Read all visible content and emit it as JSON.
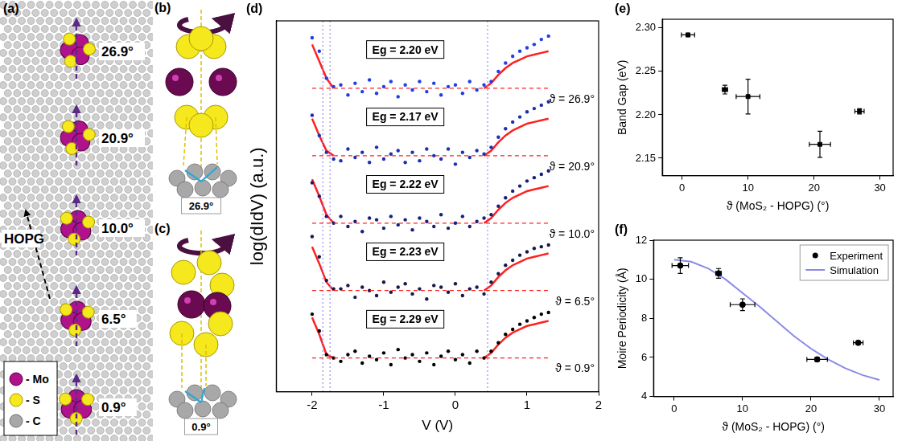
{
  "panel_a": {
    "label": "(a)",
    "substrate": "HOPG",
    "angles": [
      "26.9°",
      "20.9°",
      "10.0°",
      "6.5°",
      "0.9°"
    ],
    "key": [
      "- Mo",
      "- S",
      "- C"
    ]
  },
  "panel_b": {
    "label": "(b)",
    "angle": "26.9°"
  },
  "panel_c": {
    "label": "(c)",
    "angle": "0.9°"
  },
  "chart_data": [
    {
      "label": "(d)",
      "type": "scatter",
      "x_label": "V (V)",
      "y_label": "log(dIdV) (a.u.)",
      "xlim": [
        -2.5,
        2
      ],
      "xticks": [
        -2,
        -1,
        0,
        1,
        2
      ],
      "ylim": [
        0,
        11
      ],
      "tick_labels": "x",
      "grid": false,
      "gap_lines": [
        -1.85,
        -1.75,
        0.45
      ],
      "fit_color": "#ff2020",
      "x": [
        -2.0,
        -1.9,
        -1.8,
        -1.7,
        -1.6,
        -1.5,
        -1.4,
        -1.3,
        -1.2,
        -1.1,
        -1.0,
        -0.9,
        -0.8,
        -0.7,
        -0.6,
        -0.5,
        -0.4,
        -0.3,
        -0.2,
        -0.1,
        0.0,
        0.1,
        0.2,
        0.3,
        0.4,
        0.5,
        0.6,
        0.7,
        0.8,
        0.9,
        1.0,
        1.1,
        1.2,
        1.3
      ],
      "series": [
        {
          "name": "ϑ = 26.9°",
          "color": "#1f3ee6",
          "eg_label": "Eg = 2.20 eV",
          "baseline": 9,
          "values": [
            10.5,
            10.1,
            9.3,
            9.05,
            9.1,
            8.8,
            9.15,
            8.9,
            9.25,
            8.85,
            9.05,
            9.2,
            8.75,
            9.1,
            8.95,
            9.2,
            8.9,
            9.15,
            8.8,
            9.05,
            9.1,
            8.85,
            9.2,
            8.95,
            9.1,
            9.2,
            9.5,
            9.75,
            9.95,
            10.1,
            10.2,
            10.3,
            10.45,
            10.55
          ],
          "fit": [
            10.3,
            9.8,
            9.3,
            9.0,
            null,
            null,
            null,
            null,
            null,
            null,
            null,
            null,
            null,
            null,
            null,
            null,
            null,
            null,
            null,
            null,
            null,
            null,
            null,
            null,
            9.0,
            9.15,
            9.4,
            9.6,
            9.75,
            9.85,
            9.95,
            10.0,
            10.05,
            10.1
          ]
        },
        {
          "name": "ϑ = 20.9°",
          "color": "#1b2fb0",
          "eg_label": "Eg = 2.17 eV",
          "baseline": 7,
          "values": [
            8.2,
            7.6,
            7.1,
            6.9,
            6.85,
            7.2,
            6.95,
            7.1,
            6.8,
            7.25,
            6.9,
            7.05,
            7.15,
            6.8,
            7.1,
            6.85,
            7.2,
            7.0,
            6.9,
            7.2,
            6.75,
            7.1,
            6.95,
            7.15,
            7.05,
            7.25,
            7.55,
            7.8,
            8.0,
            8.15,
            8.3,
            8.4,
            8.5,
            8.6
          ],
          "fit": [
            8.1,
            7.6,
            7.15,
            7.0,
            null,
            null,
            null,
            null,
            null,
            null,
            null,
            null,
            null,
            null,
            null,
            null,
            null,
            null,
            null,
            null,
            null,
            null,
            null,
            null,
            7.0,
            7.15,
            7.4,
            7.6,
            7.75,
            7.85,
            7.95,
            8.0,
            8.05,
            8.1
          ]
        },
        {
          "name": "ϑ = 10.0°",
          "color": "#16207a",
          "eg_label": "Eg = 2.22 eV",
          "baseline": 5,
          "values": [
            6.2,
            5.8,
            5.2,
            5.0,
            5.2,
            4.9,
            5.05,
            4.75,
            5.15,
            5.1,
            4.85,
            5.2,
            4.95,
            5.1,
            4.8,
            5.15,
            5.05,
            4.9,
            5.25,
            4.85,
            5.0,
            5.2,
            4.9,
            5.05,
            5.15,
            5.25,
            5.5,
            5.75,
            5.95,
            6.1,
            6.25,
            6.35,
            6.45,
            6.55
          ],
          "fit": [
            6.3,
            5.8,
            5.25,
            5.0,
            null,
            null,
            null,
            null,
            null,
            null,
            null,
            null,
            null,
            null,
            null,
            null,
            null,
            null,
            null,
            null,
            null,
            null,
            null,
            null,
            5.0,
            5.15,
            5.4,
            5.6,
            5.75,
            5.85,
            5.95,
            6.0,
            6.05,
            6.1
          ]
        },
        {
          "name": "ϑ = 6.5°",
          "color": "#141a4a",
          "eg_label": "Eg = 2.23 eV",
          "baseline": 3,
          "values": [
            4.6,
            4.0,
            3.3,
            3.05,
            3.05,
            3.15,
            2.8,
            3.1,
            3.0,
            2.85,
            3.25,
            2.95,
            3.1,
            3.2,
            2.9,
            3.05,
            2.75,
            3.15,
            3.1,
            2.95,
            3.2,
            2.85,
            3.05,
            3.1,
            2.9,
            3.25,
            3.5,
            3.75,
            3.9,
            4.05,
            4.15,
            4.25,
            4.3,
            4.35
          ],
          "fit": [
            4.3,
            3.8,
            3.25,
            3.0,
            null,
            null,
            null,
            null,
            null,
            null,
            null,
            null,
            null,
            null,
            null,
            null,
            null,
            null,
            null,
            null,
            null,
            null,
            null,
            null,
            3.0,
            3.15,
            3.4,
            3.6,
            3.75,
            3.85,
            3.95,
            4.0,
            4.05,
            4.1
          ]
        },
        {
          "name": "ϑ = 0.9°",
          "color": "#000000",
          "eg_label": "Eg = 2.29 eV",
          "baseline": 1,
          "values": [
            2.3,
            1.8,
            1.1,
            1.0,
            0.9,
            1.1,
            1.2,
            0.85,
            1.05,
            0.95,
            1.15,
            0.8,
            1.25,
            1.0,
            1.1,
            0.9,
            1.15,
            0.8,
            1.05,
            1.2,
            0.95,
            1.1,
            0.85,
            1.2,
            1.0,
            1.2,
            1.45,
            1.7,
            1.85,
            2.0,
            2.1,
            2.2,
            2.3,
            2.35
          ],
          "fit": [
            2.2,
            1.7,
            1.1,
            1.0,
            null,
            null,
            null,
            null,
            null,
            null,
            null,
            null,
            null,
            null,
            null,
            null,
            null,
            null,
            null,
            null,
            null,
            null,
            null,
            null,
            1.0,
            1.15,
            1.4,
            1.6,
            1.75,
            1.85,
            1.95,
            2.0,
            2.05,
            2.1
          ]
        }
      ]
    },
    {
      "label": "(e)",
      "type": "scatter",
      "x_label": "ϑ (MoS₂ - HOPG) (°)",
      "y_label": "Band Gap (eV)",
      "xlim": [
        -3,
        32
      ],
      "xticks": [
        0,
        10,
        20,
        30
      ],
      "ylim": [
        2.13,
        2.31
      ],
      "yticks": [
        2.15,
        {
          "value": 2.2,
          "label": "2.20"
        },
        2.25,
        {
          "value": 2.3,
          "label": "2.30"
        }
      ],
      "grid": false,
      "color": "#000000",
      "marker": "square",
      "x": [
        0.9,
        6.5,
        10.0,
        20.9,
        26.9
      ],
      "values": [
        2.292,
        2.229,
        2.221,
        2.166,
        2.204
      ],
      "x_error": [
        1.0,
        0.4,
        1.8,
        1.6,
        0.7
      ],
      "y_error": [
        0.002,
        0.005,
        0.02,
        0.015,
        0.003
      ]
    },
    {
      "label": "(f)",
      "type": "scatter",
      "x_label": "ϑ (MoS₂ - HOPG) (°)",
      "y_label": "Moire Periodicity (Å)",
      "xlim": [
        -3,
        32
      ],
      "xticks": [
        0,
        10,
        20,
        30
      ],
      "ylim": [
        4,
        12
      ],
      "yticks": [
        4,
        6,
        8,
        10,
        12
      ],
      "grid": false,
      "legend": "upper right",
      "series": [
        {
          "name": "Experiment",
          "color": "#000000",
          "marker": "circle",
          "x": [
            0.9,
            6.5,
            10.0,
            20.9,
            26.9
          ],
          "values": [
            10.7,
            10.3,
            8.7,
            5.9,
            6.75
          ],
          "x_error": [
            1.2,
            0.4,
            1.8,
            1.5,
            0.7
          ],
          "y_error": [
            0.4,
            0.25,
            0.3,
            0.1,
            0.06
          ]
        },
        {
          "name": "Simulation",
          "type": "line",
          "color": "#8a8ae6",
          "x": [
            0,
            2.5,
            5,
            7.5,
            10,
            12.5,
            15,
            17.5,
            20,
            22.5,
            25,
            27.5,
            30
          ],
          "values": [
            11.0,
            10.9,
            10.55,
            10.0,
            9.3,
            8.6,
            7.85,
            7.1,
            6.45,
            5.9,
            5.45,
            5.1,
            4.85
          ]
        }
      ]
    }
  ]
}
